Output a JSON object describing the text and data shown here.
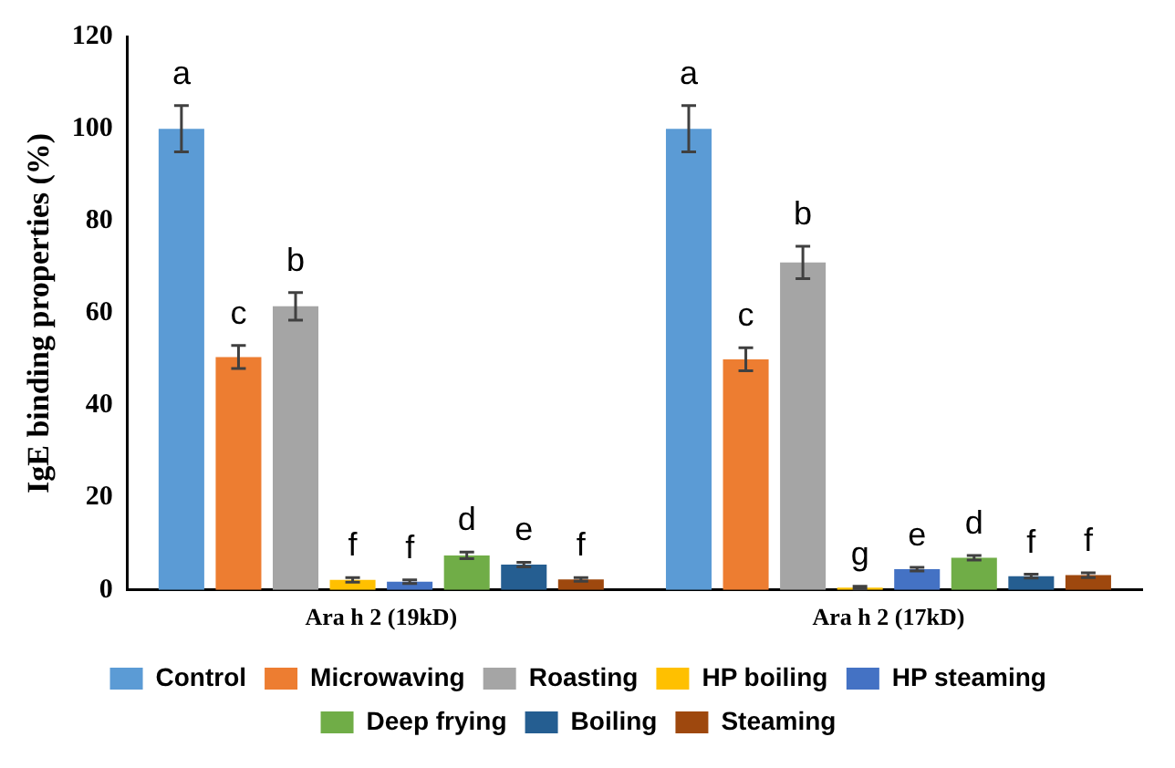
{
  "chart_data": {
    "type": "bar",
    "ylabel": "IgE binding properties (%)",
    "categories": [
      "Ara h 2 (19kD)",
      "Ara h 2 (17kD)"
    ],
    "ylim": [
      0,
      120
    ],
    "yticks": [
      0,
      20,
      40,
      60,
      80,
      100,
      120
    ],
    "grid": false,
    "legend": "bottom",
    "series": [
      {
        "name": "Control",
        "color": "#5b9bd5",
        "values": [
          100,
          100
        ],
        "errors": [
          5,
          5
        ],
        "value_labels": [
          "a",
          "a"
        ]
      },
      {
        "name": "Microwaving",
        "color": "#ed7d31",
        "values": [
          50.5,
          50
        ],
        "errors": [
          2.5,
          2.5
        ],
        "value_labels": [
          "c",
          "c"
        ]
      },
      {
        "name": "Roasting",
        "color": "#a5a5a5",
        "values": [
          61.5,
          71
        ],
        "errors": [
          3,
          3.5
        ],
        "value_labels": [
          "b",
          "b"
        ]
      },
      {
        "name": "HP boiling",
        "color": "#ffc000",
        "values": [
          2.2,
          0.5
        ],
        "errors": [
          0.5,
          0.3
        ],
        "value_labels": [
          "f",
          "g"
        ]
      },
      {
        "name": "HP steaming",
        "color": "#4472c4",
        "values": [
          1.8,
          4.5
        ],
        "errors": [
          0.4,
          0.4
        ],
        "value_labels": [
          "f",
          "e"
        ]
      },
      {
        "name": "Deep frying",
        "color": "#70ad47",
        "values": [
          7.5,
          7
        ],
        "errors": [
          0.7,
          0.5
        ],
        "value_labels": [
          "d",
          "d"
        ]
      },
      {
        "name": "Boiling",
        "color": "#255e91",
        "values": [
          5.5,
          3
        ],
        "errors": [
          0.5,
          0.4
        ],
        "value_labels": [
          "e",
          "f"
        ]
      },
      {
        "name": "Steaming",
        "color": "#9e480e",
        "values": [
          2.3,
          3.2
        ],
        "errors": [
          0.4,
          0.5
        ],
        "value_labels": [
          "f",
          "f"
        ]
      }
    ]
  }
}
